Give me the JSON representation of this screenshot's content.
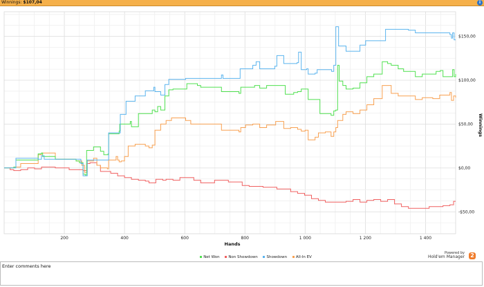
{
  "header": {
    "label": "Winnings:",
    "value": "$107,04",
    "info_icon": "info-icon"
  },
  "legend": {
    "items": [
      "Net Won",
      "Non Showdown",
      "Showdown",
      "All-In EV"
    ]
  },
  "branding": {
    "line1": "Powered by",
    "line2": "Hold'em Manager",
    "logo_text": "2"
  },
  "comments": {
    "placeholder": "Enter comments here"
  },
  "chart_data": {
    "type": "line",
    "xlabel": "Hands",
    "ylabel": "Winnings",
    "xlim": [
      0,
      1500
    ],
    "ylim": [
      -75,
      178
    ],
    "x_ticks": [
      200,
      400,
      600,
      800,
      1000,
      1200,
      1400
    ],
    "x_tick_labels": [
      "200",
      "400",
      "600",
      "800",
      "1 000",
      "1 200",
      "1 400"
    ],
    "y_ticks": [
      -50,
      0,
      50,
      100,
      150
    ],
    "y_tick_labels": [
      "-$50,00",
      "$0,00",
      "$50,00",
      "$100,00",
      "$150,00"
    ],
    "grid": true,
    "legend_position": "bottom",
    "series": [
      {
        "name": "Net Won",
        "color": "#4fe04f",
        "points": [
          [
            0,
            0
          ],
          [
            32,
            1
          ],
          [
            39,
            9
          ],
          [
            113,
            16
          ],
          [
            124,
            17
          ],
          [
            128,
            13
          ],
          [
            170,
            10
          ],
          [
            239,
            8
          ],
          [
            250,
            6
          ],
          [
            262,
            -7
          ],
          [
            269,
            -8
          ],
          [
            274,
            20
          ],
          [
            297,
            24
          ],
          [
            320,
            19
          ],
          [
            331,
            15
          ],
          [
            345,
            16
          ],
          [
            347,
            39
          ],
          [
            382,
            42
          ],
          [
            384,
            50
          ],
          [
            419,
            53
          ],
          [
            423,
            47
          ],
          [
            446,
            62
          ],
          [
            481,
            62
          ],
          [
            492,
            66
          ],
          [
            501,
            64
          ],
          [
            510,
            70
          ],
          [
            520,
            66
          ],
          [
            534,
            82
          ],
          [
            547,
            89
          ],
          [
            561,
            90
          ],
          [
            607,
            96
          ],
          [
            642,
            94
          ],
          [
            653,
            92
          ],
          [
            676,
            92
          ],
          [
            722,
            87
          ],
          [
            780,
            85
          ],
          [
            786,
            92
          ],
          [
            802,
            92
          ],
          [
            832,
            94
          ],
          [
            849,
            91
          ],
          [
            872,
            94
          ],
          [
            906,
            94
          ],
          [
            925,
            94
          ],
          [
            934,
            84
          ],
          [
            962,
            86
          ],
          [
            975,
            87
          ],
          [
            987,
            90
          ],
          [
            1000,
            90
          ],
          [
            1010,
            78
          ],
          [
            1033,
            78
          ],
          [
            1049,
            62
          ],
          [
            1067,
            62
          ],
          [
            1086,
            60
          ],
          [
            1095,
            65
          ],
          [
            1102,
            66
          ],
          [
            1108,
            117
          ],
          [
            1113,
            99
          ],
          [
            1125,
            94
          ],
          [
            1136,
            90
          ],
          [
            1159,
            91
          ],
          [
            1182,
            97
          ],
          [
            1205,
            104
          ],
          [
            1228,
            107
          ],
          [
            1247,
            107
          ],
          [
            1256,
            121
          ],
          [
            1274,
            119
          ],
          [
            1286,
            117
          ],
          [
            1309,
            113
          ],
          [
            1327,
            110
          ],
          [
            1366,
            104
          ],
          [
            1389,
            107
          ],
          [
            1424,
            107
          ],
          [
            1435,
            110
          ],
          [
            1449,
            111
          ],
          [
            1458,
            104
          ],
          [
            1486,
            104
          ],
          [
            1490,
            112
          ],
          [
            1495,
            104
          ],
          [
            1500,
            107.04
          ]
        ]
      },
      {
        "name": "Non Showdown",
        "color": "#f06060",
        "points": [
          [
            0,
            0
          ],
          [
            20,
            -2
          ],
          [
            32,
            -3
          ],
          [
            55,
            -2
          ],
          [
            78,
            0
          ],
          [
            101,
            -1
          ],
          [
            124,
            1
          ],
          [
            170,
            0
          ],
          [
            216,
            -2
          ],
          [
            239,
            -2
          ],
          [
            262,
            -3
          ],
          [
            274,
            5
          ],
          [
            285,
            6
          ],
          [
            308,
            3
          ],
          [
            320,
            -4
          ],
          [
            354,
            -6
          ],
          [
            377,
            -9
          ],
          [
            389,
            -9
          ],
          [
            400,
            -11
          ],
          [
            423,
            -13
          ],
          [
            446,
            -14
          ],
          [
            469,
            -15
          ],
          [
            481,
            -17
          ],
          [
            504,
            -13
          ],
          [
            527,
            -14
          ],
          [
            538,
            -13
          ],
          [
            561,
            -14
          ],
          [
            584,
            -11
          ],
          [
            607,
            -11
          ],
          [
            630,
            -14
          ],
          [
            653,
            -17
          ],
          [
            699,
            -14
          ],
          [
            745,
            -16
          ],
          [
            780,
            -16
          ],
          [
            791,
            -20
          ],
          [
            814,
            -21
          ],
          [
            860,
            -22
          ],
          [
            906,
            -24
          ],
          [
            952,
            -27
          ],
          [
            975,
            -29
          ],
          [
            998,
            -31
          ],
          [
            1021,
            -35
          ],
          [
            1044,
            -37
          ],
          [
            1067,
            -39
          ],
          [
            1090,
            -39
          ],
          [
            1113,
            -39
          ],
          [
            1136,
            -38
          ],
          [
            1159,
            -36
          ],
          [
            1182,
            -39
          ],
          [
            1205,
            -37
          ],
          [
            1228,
            -36
          ],
          [
            1251,
            -38
          ],
          [
            1274,
            -36
          ],
          [
            1297,
            -41
          ],
          [
            1320,
            -44
          ],
          [
            1343,
            -46
          ],
          [
            1366,
            -46
          ],
          [
            1389,
            -46
          ],
          [
            1412,
            -44
          ],
          [
            1435,
            -44
          ],
          [
            1458,
            -43
          ],
          [
            1481,
            -42
          ],
          [
            1493,
            -38
          ],
          [
            1500,
            -38
          ]
        ]
      },
      {
        "name": "Showdown",
        "color": "#5ab4ee",
        "points": [
          [
            0,
            0
          ],
          [
            32,
            0
          ],
          [
            39,
            11
          ],
          [
            113,
            10
          ],
          [
            124,
            14
          ],
          [
            133,
            10
          ],
          [
            239,
            10
          ],
          [
            255,
            5
          ],
          [
            262,
            -9
          ],
          [
            271,
            -9
          ],
          [
            276,
            9
          ],
          [
            343,
            9
          ],
          [
            347,
            40
          ],
          [
            382,
            40
          ],
          [
            386,
            61
          ],
          [
            400,
            61
          ],
          [
            405,
            76
          ],
          [
            435,
            82
          ],
          [
            469,
            88
          ],
          [
            497,
            92
          ],
          [
            501,
            87
          ],
          [
            520,
            83
          ],
          [
            534,
            95
          ],
          [
            547,
            101
          ],
          [
            603,
            102
          ],
          [
            722,
            106
          ],
          [
            727,
            102
          ],
          [
            780,
            102
          ],
          [
            784,
            113
          ],
          [
            826,
            117
          ],
          [
            837,
            121
          ],
          [
            849,
            113
          ],
          [
            899,
            116
          ],
          [
            906,
            128
          ],
          [
            920,
            128
          ],
          [
            929,
            119
          ],
          [
            973,
            120
          ],
          [
            978,
            132
          ],
          [
            982,
            132
          ],
          [
            987,
            112
          ],
          [
            1005,
            113
          ],
          [
            1010,
            107
          ],
          [
            1033,
            108
          ],
          [
            1040,
            112
          ],
          [
            1088,
            110
          ],
          [
            1095,
            117
          ],
          [
            1102,
            161
          ],
          [
            1106,
            161
          ],
          [
            1111,
            139
          ],
          [
            1136,
            133
          ],
          [
            1175,
            133
          ],
          [
            1182,
            140
          ],
          [
            1201,
            145
          ],
          [
            1240,
            145
          ],
          [
            1267,
            158
          ],
          [
            1343,
            157
          ],
          [
            1366,
            154
          ],
          [
            1458,
            154
          ],
          [
            1481,
            152
          ],
          [
            1486,
            148
          ],
          [
            1490,
            154
          ],
          [
            1495,
            146
          ],
          [
            1500,
            146
          ]
        ]
      },
      {
        "name": "All-In EV",
        "color": "#f8a050",
        "points": [
          [
            0,
            0
          ],
          [
            32,
            1
          ],
          [
            55,
            5
          ],
          [
            113,
            15
          ],
          [
            124,
            17
          ],
          [
            170,
            10
          ],
          [
            239,
            8
          ],
          [
            258,
            3
          ],
          [
            267,
            -5
          ],
          [
            276,
            8
          ],
          [
            297,
            11
          ],
          [
            308,
            3
          ],
          [
            320,
            0
          ],
          [
            343,
            -1
          ],
          [
            347,
            9
          ],
          [
            372,
            13
          ],
          [
            377,
            9
          ],
          [
            382,
            7
          ],
          [
            389,
            8
          ],
          [
            400,
            13
          ],
          [
            412,
            25
          ],
          [
            435,
            27
          ],
          [
            469,
            25
          ],
          [
            481,
            23
          ],
          [
            492,
            26
          ],
          [
            501,
            43
          ],
          [
            510,
            43
          ],
          [
            520,
            50
          ],
          [
            538,
            54
          ],
          [
            556,
            57
          ],
          [
            603,
            54
          ],
          [
            620,
            50
          ],
          [
            664,
            50
          ],
          [
            722,
            43
          ],
          [
            780,
            41
          ],
          [
            786,
            46
          ],
          [
            802,
            49
          ],
          [
            826,
            50
          ],
          [
            849,
            46
          ],
          [
            872,
            49
          ],
          [
            902,
            53
          ],
          [
            915,
            53
          ],
          [
            929,
            45
          ],
          [
            952,
            46
          ],
          [
            975,
            44
          ],
          [
            987,
            42
          ],
          [
            1000,
            43
          ],
          [
            1010,
            32
          ],
          [
            1033,
            35
          ],
          [
            1044,
            40
          ],
          [
            1067,
            41
          ],
          [
            1086,
            36
          ],
          [
            1095,
            41
          ],
          [
            1102,
            46
          ],
          [
            1108,
            54
          ],
          [
            1125,
            61
          ],
          [
            1136,
            64
          ],
          [
            1159,
            62
          ],
          [
            1182,
            66
          ],
          [
            1205,
            72
          ],
          [
            1228,
            79
          ],
          [
            1256,
            94
          ],
          [
            1286,
            85
          ],
          [
            1309,
            82
          ],
          [
            1366,
            78
          ],
          [
            1389,
            80
          ],
          [
            1424,
            79
          ],
          [
            1447,
            83
          ],
          [
            1458,
            83
          ],
          [
            1481,
            86
          ],
          [
            1486,
            77
          ],
          [
            1493,
            82
          ],
          [
            1500,
            80
          ]
        ]
      }
    ]
  }
}
